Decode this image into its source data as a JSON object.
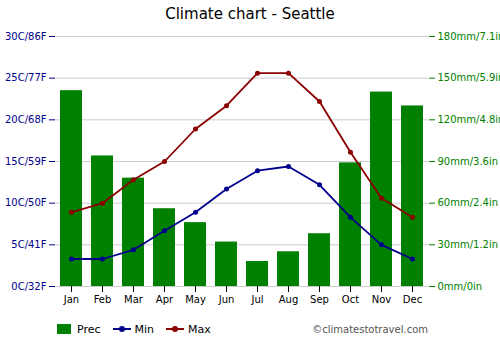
{
  "chart_data": {
    "type": "bar",
    "title": "Climate chart - Seattle",
    "categories": [
      "Jan",
      "Feb",
      "Mar",
      "Apr",
      "May",
      "Jun",
      "Jul",
      "Aug",
      "Sep",
      "Oct",
      "Nov",
      "Dec"
    ],
    "series": [
      {
        "name": "Prec",
        "type": "bar",
        "axis": "y2",
        "color": "#008000",
        "values": [
          141,
          94,
          78,
          56,
          46,
          32,
          18,
          25,
          38,
          89,
          140,
          130
        ]
      },
      {
        "name": "Min",
        "type": "line",
        "marker": "circle",
        "color": "#00008B",
        "values": [
          3.3,
          3.3,
          4.4,
          6.7,
          8.9,
          11.7,
          13.9,
          14.4,
          12.2,
          8.3,
          5.0,
          3.3
        ]
      },
      {
        "name": "Max",
        "type": "line",
        "marker": "circle",
        "color": "#8B0000",
        "values": [
          8.9,
          10.0,
          12.8,
          15.0,
          18.9,
          21.7,
          25.6,
          25.6,
          22.2,
          16.1,
          10.6,
          8.3
        ]
      }
    ],
    "ylim": [
      0,
      30
    ],
    "yticks": [
      {
        "value": 0,
        "label": "0C/32F"
      },
      {
        "value": 5,
        "label": "5C/41F"
      },
      {
        "value": 10,
        "label": "10C/50F"
      },
      {
        "value": 15,
        "label": "15C/59F"
      },
      {
        "value": 20,
        "label": "20C/68F"
      },
      {
        "value": 25,
        "label": "25C/77F"
      },
      {
        "value": 30,
        "label": "30C/86F"
      }
    ],
    "y2lim": [
      0,
      180
    ],
    "y2ticks": [
      {
        "value": 0,
        "label": "0mm/0in"
      },
      {
        "value": 30,
        "label": "30mm/1.2in"
      },
      {
        "value": 60,
        "label": "60mm/2.4in"
      },
      {
        "value": 90,
        "label": "90mm/3.6in"
      },
      {
        "value": 120,
        "label": "120mm/4.8in"
      },
      {
        "value": 150,
        "label": "150mm/5.9in"
      },
      {
        "value": 180,
        "label": "180mm/7.1in"
      }
    ],
    "grid": true,
    "legend": "bottom",
    "annotations": [
      "©climatestotravel.com"
    ]
  }
}
